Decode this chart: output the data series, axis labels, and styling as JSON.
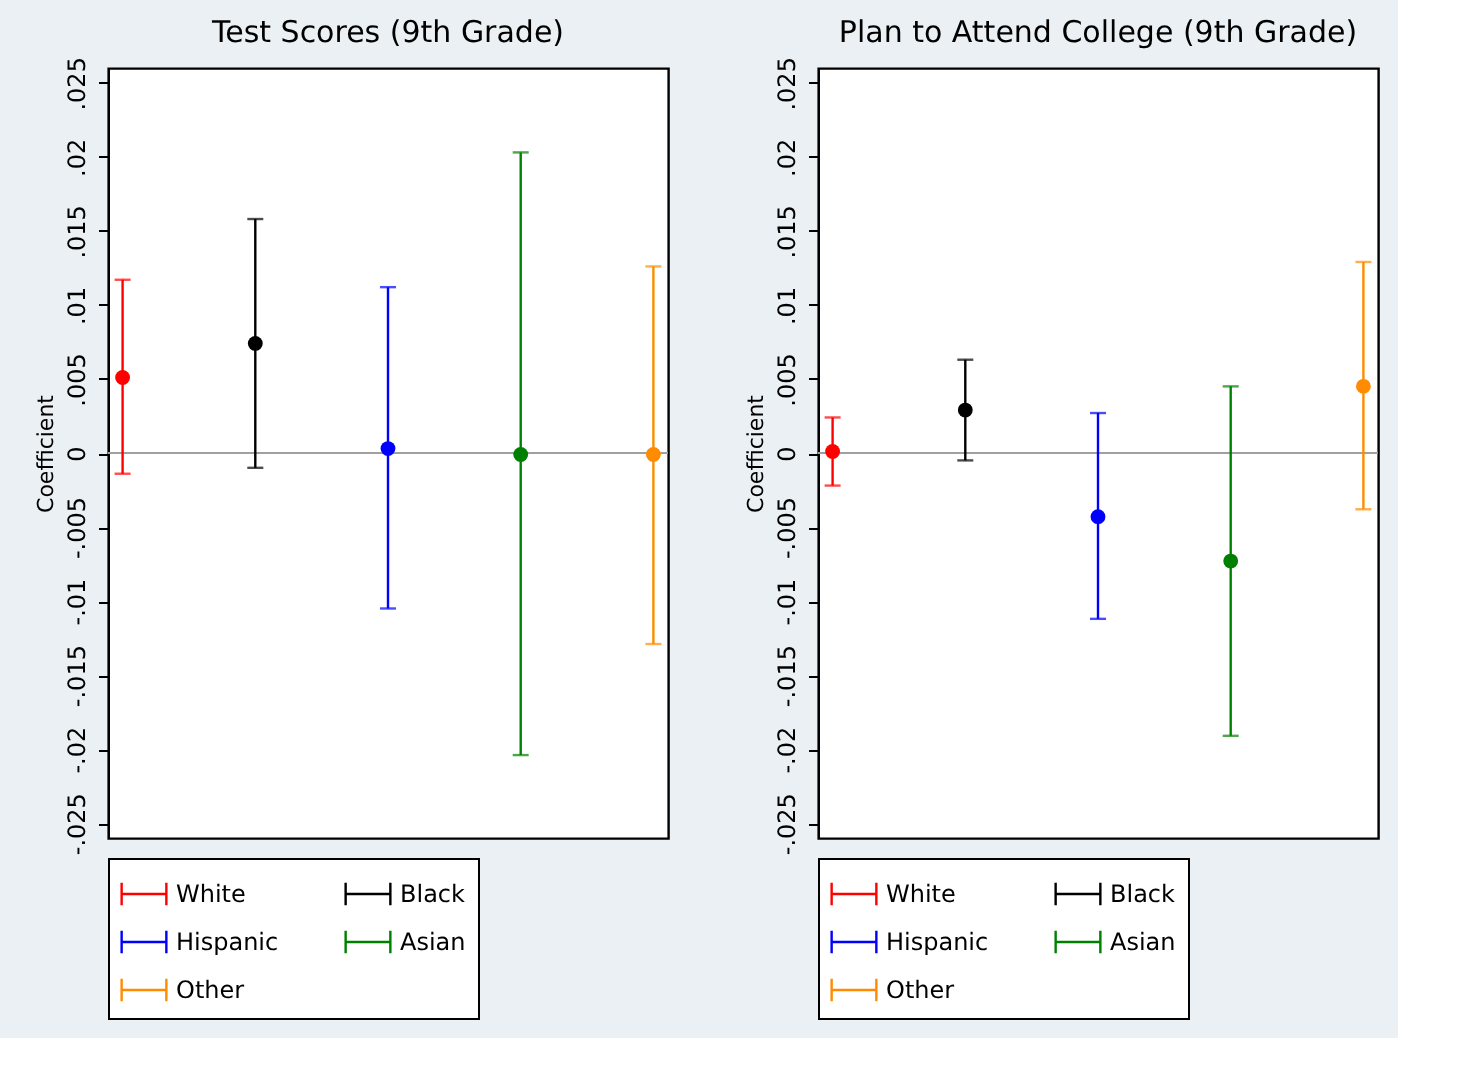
{
  "chart_data": [
    {
      "type": "scatter",
      "title": "Test Scores (9th Grade)",
      "ylabel": "Coefficient",
      "categories": [
        null,
        null,
        null,
        null,
        null
      ],
      "marker": "circle",
      "grid": false,
      "legend": "bottom",
      "ylim": [
        -0.026,
        0.026
      ],
      "yticks": [
        {
          "value": -0.025,
          "label": "-.025"
        },
        {
          "value": -0.02,
          "label": "-.02"
        },
        {
          "value": -0.015,
          "label": "-.015"
        },
        {
          "value": -0.01,
          "label": "-.01"
        },
        {
          "value": -0.005,
          "label": "-.005"
        },
        0,
        {
          "value": 0.005,
          "label": ".005"
        },
        {
          "value": 0.01,
          "label": ".01"
        },
        {
          "value": 0.015,
          "label": ".015"
        },
        {
          "value": 0.02,
          "label": ".02"
        },
        {
          "value": 0.025,
          "label": ".025"
        }
      ],
      "ref_lines": [
        {
          "axis": "y",
          "value": 0,
          "color": "#a0a0a0"
        }
      ],
      "series": [
        {
          "name": "White",
          "color": "#ff0000",
          "values": [
            0.0051,
            null,
            null,
            null,
            null
          ],
          "errors": [
            [
              -0.0014,
              0.0117
            ],
            null,
            null,
            null,
            null
          ]
        },
        {
          "name": "Black",
          "color": "#000000",
          "values": [
            null,
            0.0074,
            null,
            null,
            null
          ],
          "errors": [
            null,
            [
              -0.001,
              0.0158
            ],
            null,
            null,
            null
          ]
        },
        {
          "name": "Hispanic",
          "color": "#0000ff",
          "values": [
            null,
            null,
            0.0003,
            null,
            null
          ],
          "errors": [
            null,
            null,
            [
              -0.0105,
              0.0112
            ],
            null,
            null
          ]
        },
        {
          "name": "Asian",
          "color": "#008000",
          "values": [
            null,
            null,
            null,
            -0.0001,
            null
          ],
          "errors": [
            null,
            null,
            null,
            [
              -0.0204,
              0.0203
            ],
            null
          ]
        },
        {
          "name": "Other",
          "color": "#ff8c00",
          "values": [
            null,
            null,
            null,
            null,
            -0.0001
          ],
          "errors": [
            null,
            null,
            null,
            null,
            [
              -0.0129,
              0.0126
            ]
          ]
        }
      ]
    },
    {
      "type": "scatter",
      "title": "Plan to Attend College (9th Grade)",
      "ylabel": "Coefficient",
      "categories": [
        null,
        null,
        null,
        null,
        null
      ],
      "marker": "circle",
      "grid": false,
      "legend": "bottom",
      "ylim": [
        -0.026,
        0.026
      ],
      "yticks": [
        {
          "value": -0.025,
          "label": "-.025"
        },
        {
          "value": -0.02,
          "label": "-.02"
        },
        {
          "value": -0.015,
          "label": "-.015"
        },
        {
          "value": -0.01,
          "label": "-.01"
        },
        {
          "value": -0.005,
          "label": "-.005"
        },
        0,
        {
          "value": 0.005,
          "label": ".005"
        },
        {
          "value": 0.01,
          "label": ".01"
        },
        {
          "value": 0.015,
          "label": ".015"
        },
        {
          "value": 0.02,
          "label": ".02"
        },
        {
          "value": 0.025,
          "label": ".025"
        }
      ],
      "ref_lines": [
        {
          "axis": "y",
          "value": 0,
          "color": "#a0a0a0"
        }
      ],
      "series": [
        {
          "name": "White",
          "color": "#ff0000",
          "values": [
            0.0001,
            null,
            null,
            null,
            null
          ],
          "errors": [
            [
              -0.0022,
              0.0024
            ],
            null,
            null,
            null,
            null
          ]
        },
        {
          "name": "Black",
          "color": "#000000",
          "values": [
            null,
            0.0029,
            null,
            null,
            null
          ],
          "errors": [
            null,
            [
              -0.0005,
              0.0063
            ],
            null,
            null,
            null
          ]
        },
        {
          "name": "Hispanic",
          "color": "#0000ff",
          "values": [
            null,
            null,
            -0.0043,
            null,
            null
          ],
          "errors": [
            null,
            null,
            [
              -0.0112,
              0.0027
            ],
            null,
            null
          ]
        },
        {
          "name": "Asian",
          "color": "#008000",
          "values": [
            null,
            null,
            null,
            -0.0073,
            null
          ],
          "errors": [
            null,
            null,
            null,
            [
              -0.0191,
              0.0045
            ],
            null
          ]
        },
        {
          "name": "Other",
          "color": "#ff8c00",
          "values": [
            null,
            null,
            null,
            null,
            0.0045
          ],
          "errors": [
            null,
            null,
            null,
            null,
            [
              -0.0038,
              0.0129
            ]
          ]
        }
      ]
    }
  ]
}
